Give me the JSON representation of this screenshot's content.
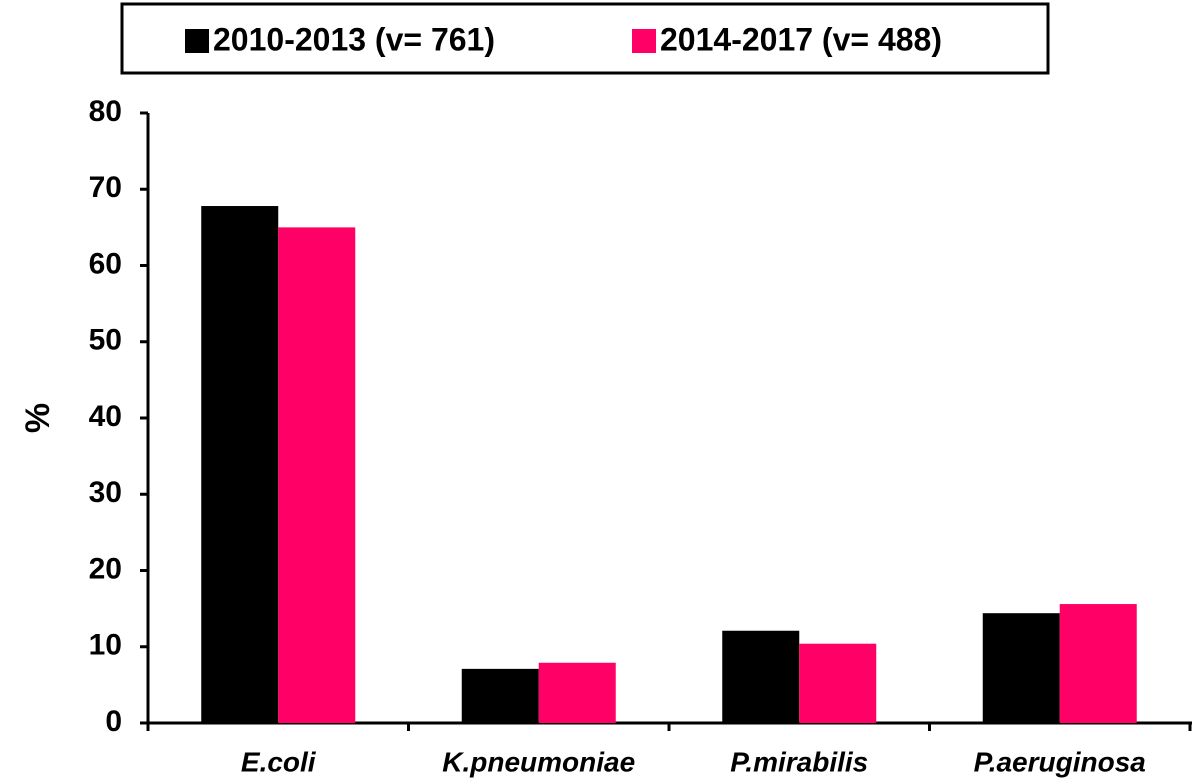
{
  "chart_data": {
    "type": "bar",
    "y_label": "%",
    "categories": [
      "E.coli",
      "K.pneumoniae",
      "P.mirabilis",
      "P.aeruginosa"
    ],
    "series": [
      {
        "name": "2010-2013 (v= 761)",
        "color": "#000000",
        "values": [
          67.8,
          7.1,
          12.1,
          14.4
        ]
      },
      {
        "name": "2014-2017 (v= 488)",
        "color": "#ff0066",
        "values": [
          65.0,
          7.9,
          10.4,
          15.6
        ]
      }
    ],
    "ylim": [
      0,
      80
    ],
    "yticks": [
      0,
      10,
      20,
      30,
      40,
      50,
      60,
      70,
      80
    ],
    "grid": false,
    "legend": "top"
  }
}
